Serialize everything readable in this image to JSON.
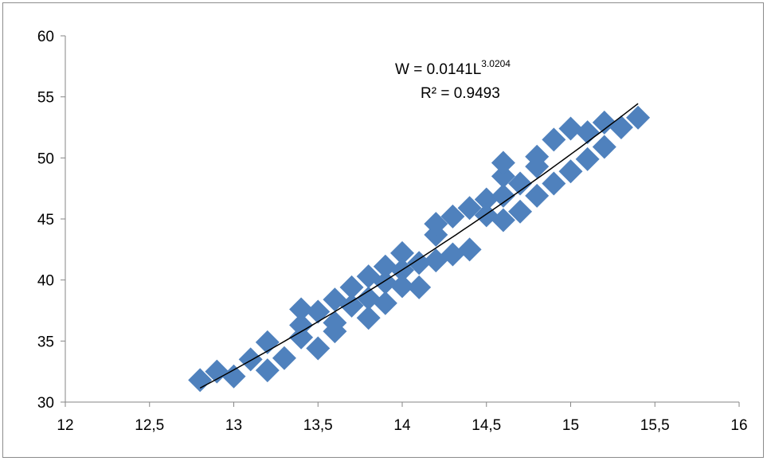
{
  "chart_data": {
    "type": "scatter",
    "title": "",
    "xlabel": "",
    "ylabel": "",
    "xlim": [
      12,
      16
    ],
    "ylim": [
      30,
      60
    ],
    "x_ticks": [
      "12",
      "12,5",
      "13",
      "13,5",
      "14",
      "14,5",
      "15",
      "15,5",
      "16"
    ],
    "y_ticks": [
      "30",
      "35",
      "40",
      "45",
      "50",
      "55",
      "60"
    ],
    "grid": false,
    "marker": "diamond",
    "colors": {
      "points": "#4f81bd",
      "trendline": "#000000",
      "axis": "#868686"
    },
    "series": [
      {
        "values": [
          [
            12.8,
            31.8
          ],
          [
            12.9,
            32.5
          ],
          [
            13.0,
            32.1
          ],
          [
            13.1,
            33.5
          ],
          [
            13.2,
            32.6
          ],
          [
            13.2,
            34.9
          ],
          [
            13.3,
            33.6
          ],
          [
            13.4,
            35.3
          ],
          [
            13.4,
            36.3
          ],
          [
            13.4,
            37.6
          ],
          [
            13.5,
            34.4
          ],
          [
            13.5,
            37.4
          ],
          [
            13.6,
            38.4
          ],
          [
            13.6,
            36.5
          ],
          [
            13.6,
            35.8
          ],
          [
            13.7,
            37.9
          ],
          [
            13.7,
            39.4
          ],
          [
            13.8,
            40.3
          ],
          [
            13.8,
            38.5
          ],
          [
            13.8,
            36.9
          ],
          [
            13.9,
            39.8
          ],
          [
            13.9,
            41.1
          ],
          [
            13.9,
            38.1
          ],
          [
            14.0,
            42.2
          ],
          [
            14.0,
            40.8
          ],
          [
            14.0,
            39.5
          ],
          [
            14.1,
            39.4
          ],
          [
            14.1,
            41.4
          ],
          [
            14.2,
            41.6
          ],
          [
            14.2,
            43.7
          ],
          [
            14.2,
            44.6
          ],
          [
            14.3,
            45.2
          ],
          [
            14.3,
            42.1
          ],
          [
            14.4,
            42.5
          ],
          [
            14.4,
            45.9
          ],
          [
            14.5,
            46.6
          ],
          [
            14.5,
            45.3
          ],
          [
            14.6,
            46.9
          ],
          [
            14.6,
            48.5
          ],
          [
            14.6,
            49.6
          ],
          [
            14.6,
            44.9
          ],
          [
            14.7,
            45.6
          ],
          [
            14.7,
            47.9
          ],
          [
            14.8,
            50.1
          ],
          [
            14.8,
            46.9
          ],
          [
            14.8,
            49.3
          ],
          [
            14.9,
            47.9
          ],
          [
            14.9,
            51.5
          ],
          [
            15.0,
            52.4
          ],
          [
            15.0,
            48.9
          ],
          [
            15.1,
            52.1
          ],
          [
            15.1,
            49.9
          ],
          [
            15.2,
            50.9
          ],
          [
            15.2,
            52.9
          ],
          [
            15.3,
            52.5
          ],
          [
            15.4,
            53.3
          ]
        ]
      }
    ],
    "trendline": {
      "type": "power",
      "coefficient": 0.0141,
      "exponent": 3.0204,
      "x_range": [
        12.8,
        15.4
      ]
    },
    "annotations": {
      "eq_prefix": "W = 0.0141L",
      "eq_exponent": "3.0204",
      "r2": "R² = 0.9493"
    }
  }
}
